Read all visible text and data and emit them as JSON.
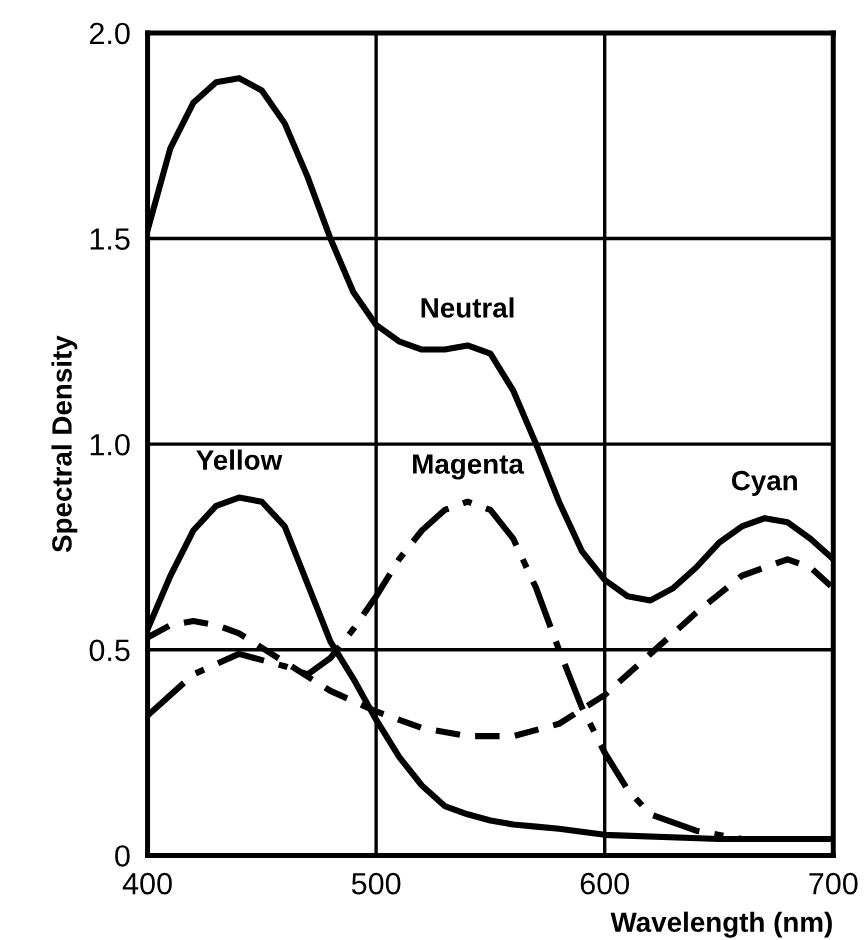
{
  "chart_data": {
    "type": "line",
    "xlabel": "Wavelength (nm)",
    "ylabel": "Spectral Density",
    "xlim": [
      400,
      700
    ],
    "xticks": [
      400,
      500,
      600,
      700
    ],
    "ylim": [
      0,
      2.0
    ],
    "yticks": [
      {
        "value": 0,
        "label": "0"
      },
      {
        "value": 0.5,
        "label": "0.5"
      },
      {
        "value": 1.0,
        "label": "1.0"
      },
      {
        "value": 1.5,
        "label": "1.5"
      },
      {
        "value": 2.0,
        "label": "2.0"
      }
    ],
    "grid": true,
    "series": [
      {
        "color": "#000000",
        "line_style": "solid",
        "x": [
          400,
          410,
          420,
          430,
          440,
          450,
          460,
          470,
          480,
          490,
          500,
          510,
          520,
          530,
          540,
          550,
          560,
          570,
          580,
          590,
          600,
          610,
          620,
          630,
          640,
          650,
          660,
          670,
          680,
          690,
          700
        ],
        "values": [
          1.52,
          1.72,
          1.83,
          1.88,
          1.89,
          1.86,
          1.78,
          1.65,
          1.5,
          1.37,
          1.29,
          1.25,
          1.23,
          1.23,
          1.24,
          1.22,
          1.13,
          1.0,
          0.86,
          0.74,
          0.67,
          0.63,
          0.62,
          0.65,
          0.7,
          0.76,
          0.8,
          0.82,
          0.81,
          0.77,
          0.72
        ]
      },
      {
        "color": "#000000",
        "line_style": "solid",
        "x": [
          400,
          410,
          420,
          430,
          440,
          450,
          460,
          470,
          480,
          490,
          500,
          510,
          520,
          530,
          540,
          550,
          560,
          570,
          580,
          600,
          650,
          700
        ],
        "values": [
          0.55,
          0.68,
          0.79,
          0.85,
          0.87,
          0.86,
          0.8,
          0.66,
          0.52,
          0.43,
          0.33,
          0.24,
          0.17,
          0.12,
          0.1,
          0.085,
          0.075,
          0.07,
          0.065,
          0.05,
          0.04,
          0.04
        ]
      },
      {
        "color": "#000000",
        "line_style": "dashdot",
        "x": [
          400,
          420,
          440,
          460,
          470,
          480,
          490,
          500,
          510,
          520,
          530,
          540,
          550,
          560,
          570,
          580,
          590,
          600,
          610,
          620,
          640,
          660,
          700
        ],
        "values": [
          0.34,
          0.44,
          0.49,
          0.46,
          0.44,
          0.48,
          0.55,
          0.63,
          0.72,
          0.79,
          0.84,
          0.86,
          0.84,
          0.77,
          0.65,
          0.5,
          0.36,
          0.25,
          0.16,
          0.1,
          0.06,
          0.04,
          0.04
        ]
      },
      {
        "color": "#000000",
        "line_style": "dashed",
        "x": [
          400,
          410,
          420,
          430,
          440,
          460,
          480,
          500,
          520,
          540,
          560,
          580,
          600,
          620,
          640,
          660,
          680,
          690,
          700
        ],
        "values": [
          0.53,
          0.56,
          0.57,
          0.56,
          0.54,
          0.47,
          0.4,
          0.35,
          0.31,
          0.29,
          0.29,
          0.32,
          0.39,
          0.49,
          0.59,
          0.68,
          0.72,
          0.7,
          0.65
        ]
      }
    ],
    "annotations": [
      {
        "text": "Neutral",
        "x": 540,
        "y": 1.24
      },
      {
        "text": "Yellow",
        "x": 440,
        "y": 0.87
      },
      {
        "text": "Magenta",
        "x": 540,
        "y": 0.86
      },
      {
        "text": "Cyan",
        "x": 670,
        "y": 0.82
      }
    ]
  }
}
